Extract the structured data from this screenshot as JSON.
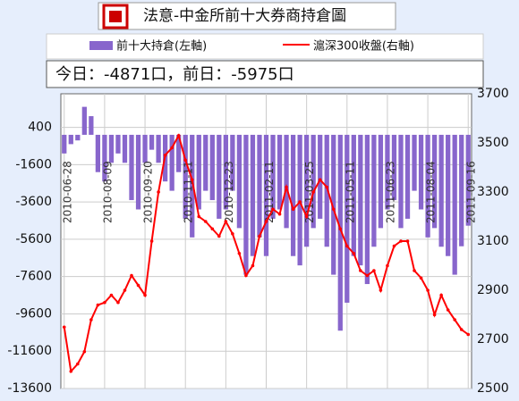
{
  "chart_data": {
    "type": "bar_line",
    "title": "法意-中金所前十大券商持倉圖",
    "info": "今日：-4871口，前日：-5975口",
    "categories": [
      "2010-06-28",
      null,
      null,
      null,
      null,
      null,
      "2010-08-09",
      null,
      null,
      null,
      null,
      null,
      "2010-09-20",
      null,
      null,
      null,
      null,
      null,
      "2010-11-11",
      null,
      null,
      null,
      null,
      null,
      "2010-12-23",
      null,
      null,
      null,
      null,
      null,
      "2011-02-11",
      null,
      null,
      null,
      null,
      null,
      "2011-03-25",
      null,
      null,
      null,
      null,
      null,
      "2011-05-11",
      null,
      null,
      null,
      null,
      null,
      "2011-06-23",
      null,
      null,
      null,
      null,
      null,
      "2011-08-04",
      null,
      null,
      null,
      null,
      null,
      "2011-09-16"
    ],
    "series": [
      {
        "name": "前十大持倉(左軸)",
        "color": "#8866cc",
        "values": [
          -1000,
          -500,
          -300,
          1500,
          1000,
          -2000,
          -2500,
          -1500,
          -1000,
          -1500,
          -3500,
          -4000,
          -1500,
          -800,
          -1500,
          -2500,
          -3000,
          -2000,
          -4500,
          -5500,
          -4000,
          -3000,
          -3500,
          -4500,
          -4000,
          -3000,
          -5000,
          -7500,
          -6500,
          -5500,
          -6500,
          -4500,
          -4000,
          -5000,
          -6500,
          -7000,
          -6000,
          -5000,
          -4500,
          -6000,
          -7500,
          -10500,
          -9000,
          -6500,
          -7000,
          -8000,
          -6000,
          -5000,
          -4000,
          -3500,
          -5000,
          -4500,
          -3000,
          -4000,
          -5500,
          -5000,
          -6000,
          -6500,
          -7500,
          -5975,
          -4871
        ]
      },
      {
        "name": "滬深300收盤(右軸)",
        "color": "#ff0000",
        "axis": "y2",
        "values": [
          2750,
          2570,
          2600,
          2650,
          2780,
          2840,
          2850,
          2880,
          2850,
          2900,
          2960,
          2920,
          2880,
          3100,
          3300,
          3450,
          3480,
          3530,
          3430,
          3350,
          3200,
          3180,
          3150,
          3120,
          3180,
          3130,
          3050,
          2960,
          3000,
          3120,
          3180,
          3230,
          3210,
          3320,
          3230,
          3260,
          3200,
          3300,
          3350,
          3320,
          3230,
          3150,
          3080,
          3050,
          2980,
          2960,
          2980,
          2900,
          3000,
          3080,
          3100,
          3100,
          2980,
          2950,
          2900,
          2800,
          2880,
          2820,
          2780,
          2740,
          2720
        ]
      }
    ],
    "ylim": [
      -13600,
      2200
    ],
    "yticks": [
      400,
      -1600,
      -3600,
      -5600,
      -7600,
      -9600,
      -11600,
      -13600
    ],
    "y2lim": [
      2500,
      3700
    ],
    "y2ticks": [
      3700,
      3500,
      3300,
      3100,
      2900,
      2700,
      2500
    ],
    "grid": true
  }
}
